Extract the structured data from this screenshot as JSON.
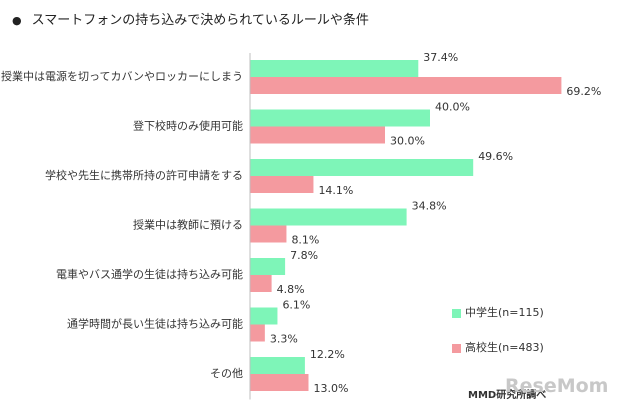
{
  "page": {
    "bullet": "●",
    "title": "スマートフォンの持ち込みで決められているルールや条件",
    "credit": "MMD研究所調べ",
    "logo": "ReseMom"
  },
  "colors": {
    "junior": "#7ef5b8",
    "senior": "#f49a9f",
    "axis": "#bfbfbf"
  },
  "chart_data": {
    "type": "bar",
    "orientation": "horizontal",
    "title": "スマートフォンの持ち込みで決められているルールや条件",
    "categories": [
      "授業中は電源を切ってカバンやロッカーにしまう",
      "登下校時のみ使用可能",
      "学校や先生に携帯所持の許可申請をする",
      "授業中は教師に預ける",
      "電車やバス通学の生徒は持ち込み可能",
      "通学時間が長い生徒は持ち込み可能",
      "その他"
    ],
    "series": [
      {
        "name": "中学生(n=115)",
        "values": [
          37.4,
          40.0,
          49.6,
          34.8,
          7.8,
          6.1,
          12.2
        ],
        "labels": [
          "37.4%",
          "40.0%",
          "49.6%",
          "34.8%",
          "7.8%",
          "6.1%",
          "12.2%"
        ]
      },
      {
        "name": "高校生(n=483)",
        "values": [
          69.2,
          30.0,
          14.1,
          8.1,
          4.8,
          3.3,
          13.0
        ],
        "labels": [
          "69.2%",
          "30.0%",
          "14.1%",
          "8.1%",
          "4.8%",
          "3.3%",
          "13.0%"
        ]
      }
    ],
    "xlim": [
      0,
      80
    ],
    "legend_position": "bottom-right",
    "grid": false
  }
}
